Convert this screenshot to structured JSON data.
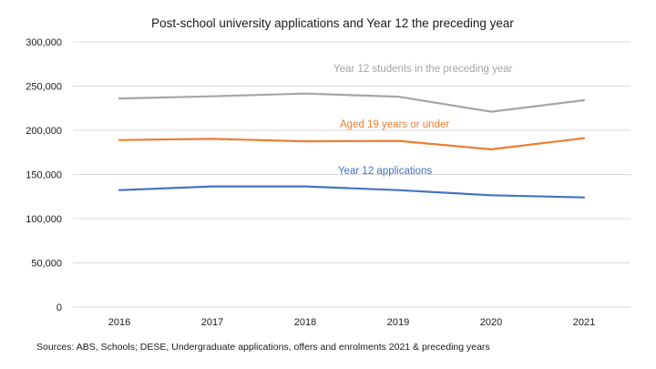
{
  "chart_data": {
    "type": "line",
    "title": "Post-school university applications and Year 12 the preceding year",
    "xlabel": "",
    "ylabel": "",
    "categories": [
      "2016",
      "2017",
      "2018",
      "2019",
      "2020",
      "2021"
    ],
    "ylim": [
      0,
      300000
    ],
    "yticks": [
      0,
      50000,
      100000,
      150000,
      200000,
      250000,
      300000
    ],
    "ytick_labels": [
      "0",
      "50,000",
      "100,000",
      "150,000",
      "200,000",
      "250,000",
      "300,000"
    ],
    "grid": true,
    "legend": "inline labels above each line",
    "series": [
      {
        "name": "Year 12 students in the preceding year",
        "color": "#A5A5A5",
        "values": [
          236000,
          238500,
          241500,
          238000,
          221000,
          234000
        ]
      },
      {
        "name": "Aged 19 years or under",
        "color": "#ED7D31",
        "values": [
          189000,
          190300,
          187500,
          188000,
          178500,
          191000
        ]
      },
      {
        "name": "Year 12 applications",
        "color": "#4472C4",
        "values": [
          132300,
          136500,
          136500,
          132300,
          126500,
          124000
        ]
      }
    ],
    "annotations": [
      "Sources: ABS, Schools; DESE, Undergraduate applications, offers and enrolments 2021 & preceding years"
    ]
  }
}
